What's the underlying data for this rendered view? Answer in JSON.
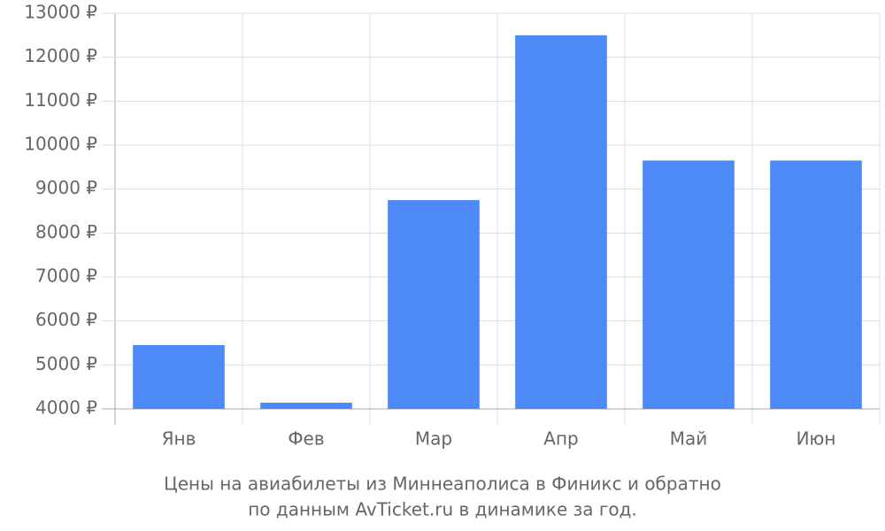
{
  "chart_data": {
    "type": "bar",
    "title": [
      "Цены на авиабилеты из Миннеаполиса в Финикс и обратно",
      "по данным AvTicket.ru в динамике за год."
    ],
    "categories": [
      "Янв",
      "Фев",
      "Мар",
      "Апр",
      "Май",
      "Июн"
    ],
    "values": [
      5450,
      4140,
      8750,
      12500,
      9650,
      9650
    ],
    "color": "#4d89f9",
    "ylim": [
      4000,
      13000
    ],
    "yticks": [
      {
        "value": 4000,
        "label": "4000 ₽"
      },
      {
        "value": 5000,
        "label": "5000 ₽"
      },
      {
        "value": 6000,
        "label": "6000 ₽"
      },
      {
        "value": 7000,
        "label": "7000 ₽"
      },
      {
        "value": 8000,
        "label": "8000 ₽"
      },
      {
        "value": 9000,
        "label": "9000 ₽"
      },
      {
        "value": 10000,
        "label": "10000 ₽"
      },
      {
        "value": 11000,
        "label": "11000 ₽"
      },
      {
        "value": 12000,
        "label": "12000 ₽"
      },
      {
        "value": 13000,
        "label": "13000 ₽"
      }
    ],
    "grid": true
  }
}
